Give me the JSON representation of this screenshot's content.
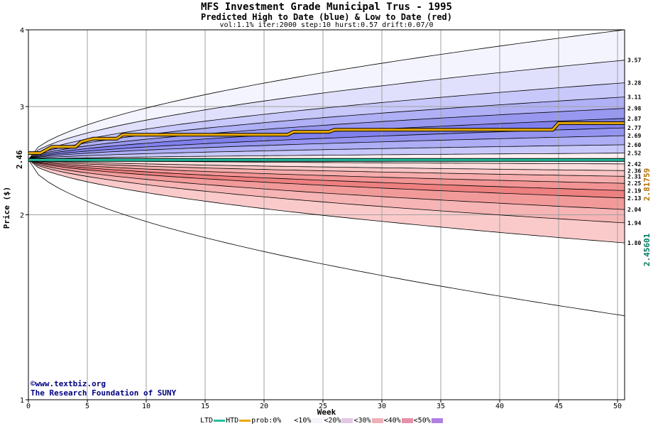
{
  "title": "MFS Investment Grade Municipal Trus - 1995",
  "subtitle": "Predicted High to Date (blue) &  Low to Date (red)",
  "params": "vol:1.1% iter:2000 step:10 hurst:0.57 drift:0.07/0",
  "credits": {
    "site": "©www.textbiz.org",
    "org": "The Research Foundation of SUNY"
  },
  "colors": {
    "htd": "#e8a800",
    "ltd": "#20c0a0",
    "grid": "#a0a0a0"
  },
  "chart_data": {
    "type": "area",
    "xlabel": "Week",
    "ylabel": "Price ($)",
    "ylim": [
      1,
      4
    ],
    "xlim": [
      0,
      50.6
    ],
    "y_scale": "log",
    "xticks": [
      0,
      5,
      10,
      15,
      20,
      25,
      30,
      35,
      40,
      45,
      50
    ],
    "yticks": [
      1,
      2,
      3,
      4
    ],
    "start_price": 2.46,
    "start_label": "2.46",
    "right_labels": [
      {
        "label": "2.81759",
        "color": "#b07000"
      },
      {
        "label": "2.45601",
        "color": "#007860"
      }
    ],
    "end_values": [
      3.57,
      3.28,
      3.11,
      2.98,
      2.87,
      2.77,
      2.69,
      2.6,
      2.52,
      2.42,
      2.36,
      2.31,
      2.25,
      2.19,
      2.13,
      2.04,
      1.94,
      1.8
    ],
    "end_labels": [
      "3.57",
      "3.28",
      "3.11",
      "2.98",
      "2.87",
      "2.77",
      "2.69",
      "2.60",
      "2.52",
      "2.42",
      "2.36",
      "2.31",
      "2.25",
      "2.19",
      "2.13",
      "2.04",
      "1.94",
      "1.80"
    ],
    "outer_high_end": 4.0,
    "outer_low_end": 1.37,
    "high_to_date": {
      "x": [
        0,
        1,
        1.5,
        2,
        4,
        4.5,
        5.5,
        7.5,
        8,
        22,
        22.5,
        25.5,
        26,
        44.5,
        45,
        50.6
      ],
      "y": [
        2.52,
        2.52,
        2.55,
        2.58,
        2.58,
        2.63,
        2.66,
        2.66,
        2.7,
        2.7,
        2.73,
        2.73,
        2.75,
        2.75,
        2.82,
        2.82
      ]
    },
    "low_to_date": {
      "x": [
        0,
        50.6
      ],
      "y": [
        2.456,
        2.456
      ]
    },
    "legend": {
      "ltd": "LTD",
      "htd": "HTD",
      "prob_prefix": "prob:",
      "items": [
        {
          "label": "0%",
          "color": "#ffffff"
        },
        {
          "label": "<10%",
          "color": "#f4f4fc"
        },
        {
          "label": "<20%",
          "color": "#e2c8e4"
        },
        {
          "label": "<30%",
          "color": "#eeb0b8"
        },
        {
          "label": "<40%",
          "color": "#e890a8"
        },
        {
          "label": "<50%",
          "color": "#b080e0"
        }
      ]
    },
    "band_colors_high": [
      "#f4f4fe",
      "#e0e0fc",
      "#c8c8fa",
      "#b0b0f6",
      "#9898f0",
      "#8080ec",
      "#9494f0",
      "#aeaef6",
      "#c8c8fa"
    ],
    "band_colors_low": [
      "#fef0f0",
      "#fcdcdc",
      "#fac4c4",
      "#f6acac",
      "#f29494",
      "#ee8080",
      "#f29a9a",
      "#f6b4b4",
      "#facaca"
    ]
  }
}
